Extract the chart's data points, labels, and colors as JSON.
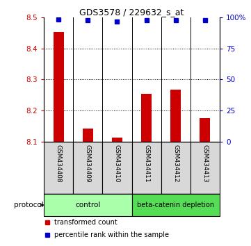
{
  "title": "GDS3578 / 229632_s_at",
  "categories": [
    "GSM434408",
    "GSM434409",
    "GSM434410",
    "GSM434411",
    "GSM434412",
    "GSM434413"
  ],
  "red_values": [
    8.452,
    8.143,
    8.112,
    8.253,
    8.268,
    8.175
  ],
  "blue_values": [
    98.0,
    97.5,
    96.5,
    97.5,
    97.5,
    97.5
  ],
  "ylim_left": [
    8.1,
    8.5
  ],
  "ylim_right": [
    0,
    100
  ],
  "yticks_left": [
    8.1,
    8.2,
    8.3,
    8.4,
    8.5
  ],
  "yticks_right": [
    0,
    25,
    50,
    75,
    100
  ],
  "ytick_labels_right": [
    "0",
    "25",
    "50",
    "75",
    "100%"
  ],
  "bar_color": "#cc0000",
  "dot_color": "#0000cc",
  "bar_width": 0.35,
  "grid_color": "#000000",
  "control_color": "#aaffaa",
  "depletion_color": "#55dd55",
  "sample_box_color": "#d8d8d8",
  "legend_red_label": "transformed count",
  "legend_blue_label": "percentile rank within the sample",
  "protocol_label": "protocol",
  "title_fontsize": 9,
  "tick_fontsize": 7.5,
  "legend_fontsize": 7,
  "category_fontsize": 6.5
}
